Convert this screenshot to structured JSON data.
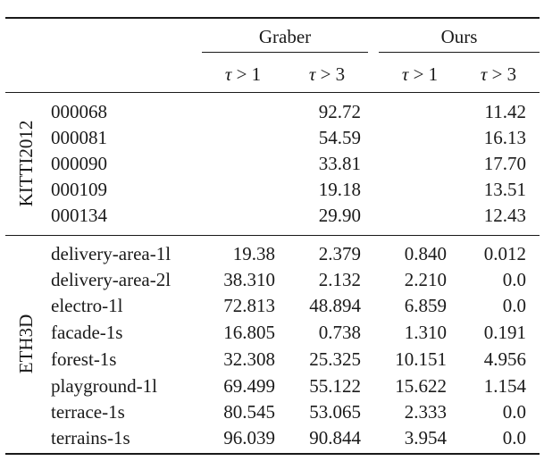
{
  "header": {
    "groups": [
      "Graber",
      "Ours"
    ],
    "subcolumns": [
      "τ > 1",
      "τ > 3",
      "τ > 1",
      "τ > 3"
    ]
  },
  "sections": [
    {
      "label": "KITTI2012",
      "rows": [
        {
          "name": "000068",
          "values": [
            "",
            "92.72",
            "",
            "11.42"
          ]
        },
        {
          "name": "000081",
          "values": [
            "",
            "54.59",
            "",
            "16.13"
          ]
        },
        {
          "name": "000090",
          "values": [
            "",
            "33.81",
            "",
            "17.70"
          ]
        },
        {
          "name": "000109",
          "values": [
            "",
            "19.18",
            "",
            "13.51"
          ]
        },
        {
          "name": "000134",
          "values": [
            "",
            "29.90",
            "",
            "12.43"
          ]
        }
      ]
    },
    {
      "label": "ETH3D",
      "rows": [
        {
          "name": "delivery-area-1l",
          "values": [
            "19.38",
            "2.379",
            "0.840",
            "0.012"
          ]
        },
        {
          "name": "delivery-area-2l",
          "values": [
            "38.310",
            "2.132",
            "2.210",
            "0.0"
          ]
        },
        {
          "name": "electro-1l",
          "values": [
            "72.813",
            "48.894",
            "6.859",
            "0.0"
          ]
        },
        {
          "name": "facade-1s",
          "values": [
            "16.805",
            "0.738",
            "1.310",
            "0.191"
          ]
        },
        {
          "name": "forest-1s",
          "values": [
            "32.308",
            "25.325",
            "10.151",
            "4.956"
          ]
        },
        {
          "name": "playground-1l",
          "values": [
            "69.499",
            "55.122",
            "15.622",
            "1.154"
          ]
        },
        {
          "name": "terrace-1s",
          "values": [
            "80.545",
            "53.065",
            "2.333",
            "0.0"
          ]
        },
        {
          "name": "terrains-1s",
          "values": [
            "96.039",
            "90.844",
            "3.954",
            "0.0"
          ]
        }
      ]
    }
  ]
}
